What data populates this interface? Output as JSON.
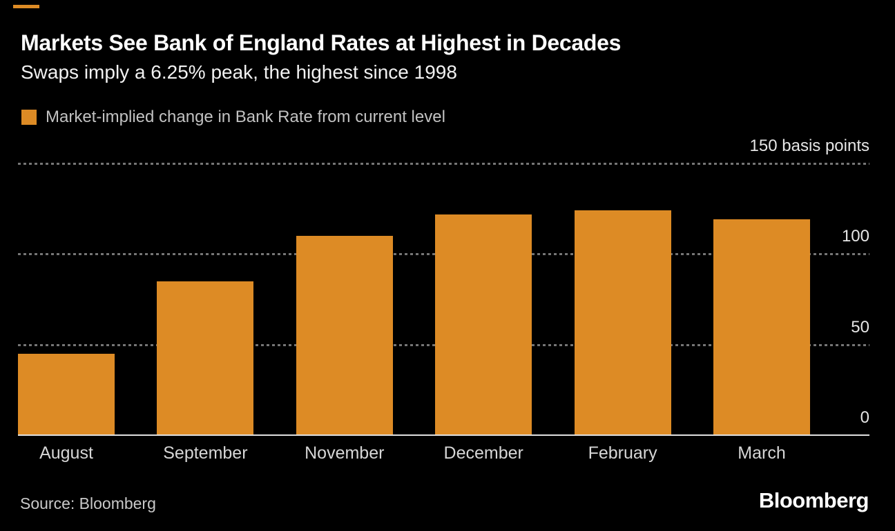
{
  "brand": {
    "logo_text": "Bloomberg",
    "accent_color": "#DD8B25"
  },
  "header": {
    "title": "Markets See Bank of England Rates at Highest in Decades",
    "subtitle": "Swaps imply a 6.25% peak, the highest since 1998"
  },
  "legend": {
    "label": "Market-implied change in Bank Rate from current level",
    "swatch_color": "#DD8B25"
  },
  "footer": {
    "source_label": "Source: Bloomberg"
  },
  "chart_data": {
    "type": "bar",
    "title": "Markets See Bank of England Rates at Highest in Decades",
    "subtitle": "Swaps imply a 6.25% peak, the highest since 1998",
    "series_name": "Market-implied change in Bank Rate from current level",
    "categories": [
      "August",
      "September",
      "November",
      "December",
      "February",
      "March"
    ],
    "values": [
      45,
      85,
      110,
      122,
      124,
      119
    ],
    "unit": "basis points",
    "ylim": [
      0,
      150
    ],
    "yticks": [
      0,
      50,
      100,
      150
    ],
    "ytick_labels": [
      "0",
      "50",
      "100",
      "150 basis points"
    ],
    "ytick_side": "right",
    "grid": "horizontal-dashed",
    "bar_color": "#DD8B25",
    "background_color": "#000000",
    "legend_position": "top-left"
  }
}
